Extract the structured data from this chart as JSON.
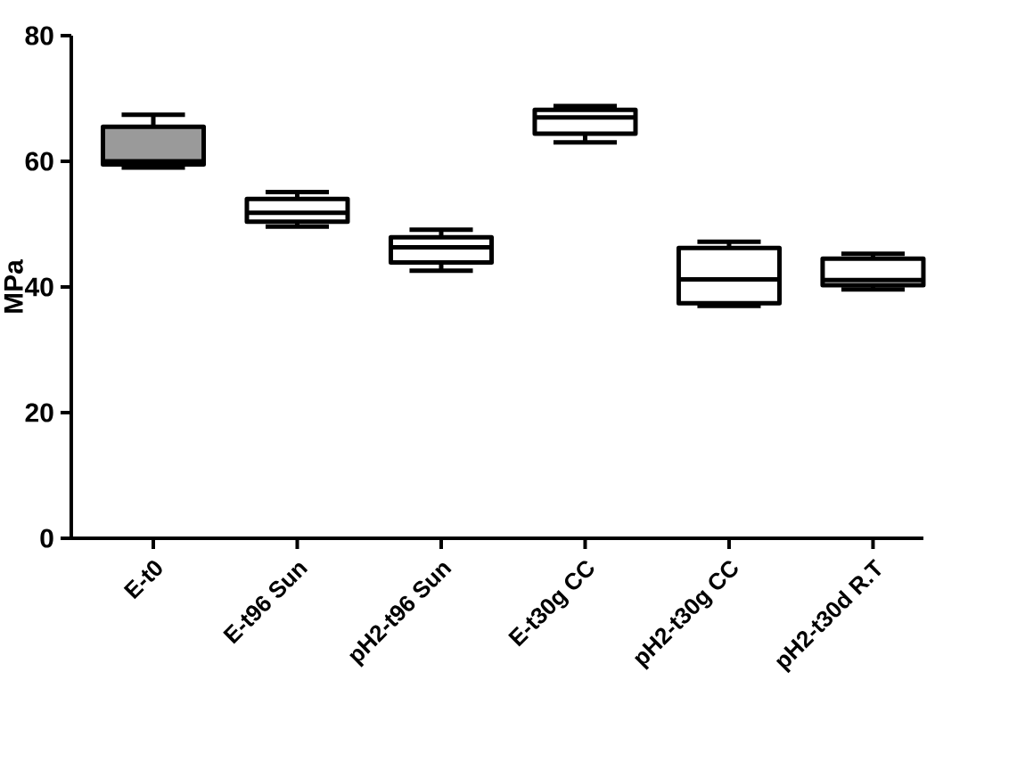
{
  "chart_data": {
    "type": "box",
    "ylabel": "MPa",
    "categories": [
      "E-t0",
      "E-t96 Sun",
      "pH2-t96 Sun",
      "E-t30g CC",
      "pH2-t30g CC",
      "pH2-t30d  R.T"
    ],
    "boxes": [
      {
        "low": 59,
        "q1": 59.5,
        "median": 60,
        "q3": 65.5,
        "high": 67.4
      },
      {
        "low": 49.6,
        "q1": 50.4,
        "median": 51.8,
        "q3": 54,
        "high": 55.1
      },
      {
        "low": 42.6,
        "q1": 43.9,
        "median": 46.3,
        "q3": 47.9,
        "high": 49.1
      },
      {
        "low": 63,
        "q1": 64.4,
        "median": 67,
        "q3": 68.2,
        "high": 68.8
      },
      {
        "low": 37,
        "q1": 37.4,
        "median": 41.2,
        "q3": 46.2,
        "high": 47.2
      },
      {
        "low": 39.6,
        "q1": 40.3,
        "median": 41.1,
        "q3": 44.5,
        "high": 45.3
      }
    ],
    "colors": [
      "#9a9a9a",
      "#ffffff",
      "#ffffff",
      "#ffffff",
      "#ffffff",
      "#ffffff"
    ],
    "ylim": [
      0,
      80
    ],
    "yticks": [
      0,
      20,
      40,
      60,
      80
    ],
    "grid": false
  }
}
